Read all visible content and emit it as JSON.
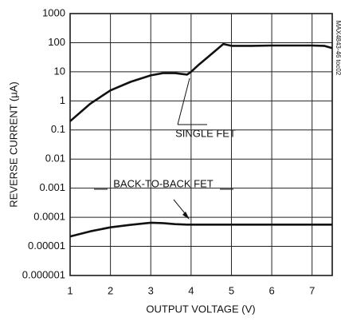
{
  "chart_data": {
    "type": "line",
    "xlabel": "OUTPUT VOLTAGE (V)",
    "ylabel": "REVERSE CURRENT (µA)",
    "annotations": [
      "SINGLE FET",
      "BACK-TO-BACK FET",
      "MAX4843-46 toc02"
    ],
    "log_y": true,
    "grid": true,
    "x": [
      1,
      1.5,
      2,
      2.5,
      3,
      3.3,
      3.6,
      3.9,
      4,
      4.2,
      4.5,
      4.8,
      5,
      5.5,
      6,
      6.5,
      7,
      7.3,
      7.5
    ],
    "series": [
      {
        "name": "SINGLE FET",
        "color": "#111111",
        "values": [
          0.2,
          0.8,
          2.3,
          4.5,
          7.5,
          9,
          9,
          8,
          10,
          18,
          40,
          90,
          78,
          78,
          80,
          80,
          80,
          78,
          65
        ]
      },
      {
        "name": "BACK-TO-BACK FET",
        "color": "#111111",
        "values": [
          2.2e-05,
          3.3e-05,
          4.5e-05,
          5.5e-05,
          6.5e-05,
          6.3e-05,
          5.8e-05,
          5.6e-05,
          5.6e-05,
          5.6e-05,
          5.6e-05,
          5.6e-05,
          5.6e-05,
          5.6e-05,
          5.6e-05,
          5.6e-05,
          5.6e-05,
          5.6e-05,
          5.6e-05
        ]
      }
    ],
    "xlim": [
      1,
      7.5
    ],
    "xticks": [
      1,
      2,
      3,
      4,
      5,
      6,
      7
    ],
    "ylim": [
      1e-06,
      1000
    ],
    "yticks": [
      1000,
      100,
      10,
      1,
      0.1,
      0.01,
      0.001,
      0.0001,
      1e-05,
      1e-06
    ]
  }
}
